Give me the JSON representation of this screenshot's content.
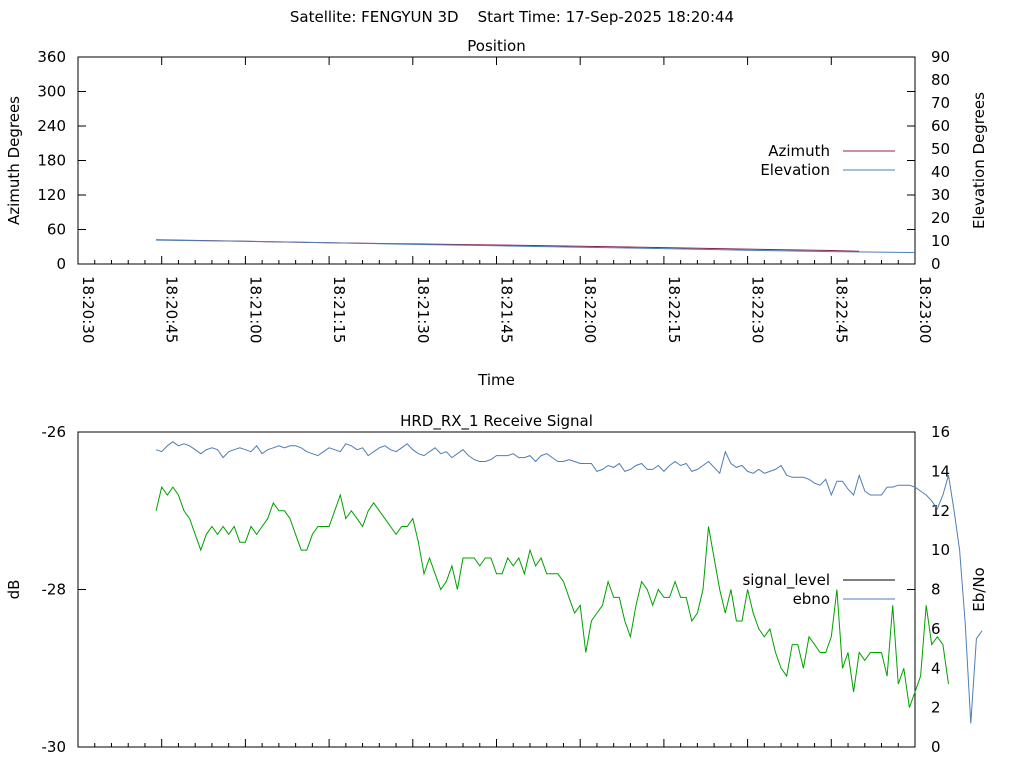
{
  "figure_title": "Satellite: FENGYUN 3D    Start Time: 17-Sep-2025 18:20:44",
  "chart_data": [
    {
      "type": "line",
      "title": "Position",
      "xlabel": "Time",
      "ylabel": "Azimuth Degrees",
      "y2label": "Elevation Degrees",
      "x_range": [
        "18:20:30",
        "18:23:00"
      ],
      "x_ticks": [
        "18:20:30",
        "18:20:45",
        "18:21:00",
        "18:21:15",
        "18:21:30",
        "18:21:45",
        "18:22:00",
        "18:22:15",
        "18:22:30",
        "18:22:45",
        "18:23:00"
      ],
      "ylim": [
        0,
        360
      ],
      "y_ticks": [
        "0",
        "60",
        "120",
        "180",
        "240",
        "300",
        "360"
      ],
      "y2lim": [
        0,
        90
      ],
      "y2_ticks": [
        "0",
        "10",
        "20",
        "30",
        "40",
        "50",
        "60",
        "70",
        "80",
        "90"
      ],
      "legend_position": "right",
      "series": [
        {
          "name": "Azimuth",
          "axis": "y",
          "color": "#8b2252",
          "x": [
            "18:20:44",
            "18:21:00",
            "18:21:15",
            "18:21:30",
            "18:21:45",
            "18:22:00",
            "18:22:15",
            "18:22:30",
            "18:22:45",
            "18:22:50"
          ],
          "values": [
            42,
            39.5,
            37,
            35,
            33,
            31,
            28.5,
            26,
            23.5,
            22
          ]
        },
        {
          "name": "Elevation",
          "axis": "y2",
          "color": "#4f7db5",
          "x": [
            "18:20:44",
            "18:21:00",
            "18:21:15",
            "18:21:30",
            "18:21:45",
            "18:22:00",
            "18:22:15",
            "18:22:30",
            "18:22:45",
            "18:23:00"
          ],
          "values": [
            10.4,
            9.9,
            9.2,
            8.5,
            7.9,
            7.3,
            6.7,
            6.0,
            5.4,
            5.0
          ]
        }
      ]
    },
    {
      "type": "line",
      "title": "HRD_RX_1 Receive Signal",
      "ylabel": "dB",
      "y2label": "Eb/No",
      "ylim": [
        -30,
        -26
      ],
      "y_ticks": [
        "-30",
        "-28",
        "-26"
      ],
      "y2lim": [
        0,
        16
      ],
      "y2_ticks": [
        "0",
        "2",
        "4",
        "6",
        "8",
        "10",
        "12",
        "14",
        "16"
      ],
      "x_range": [
        "18:20:30",
        "18:23:00"
      ],
      "legend_position": "right",
      "series": [
        {
          "name": "signal_level",
          "axis": "y",
          "color": "#00a000",
          "legend_color": "#000000",
          "x_start": "18:20:44",
          "x_step_seconds": 1,
          "values": [
            -27.0,
            -26.7,
            -26.8,
            -26.7,
            -26.8,
            -27.0,
            -27.1,
            -27.3,
            -27.5,
            -27.3,
            -27.2,
            -27.3,
            -27.2,
            -27.3,
            -27.2,
            -27.4,
            -27.4,
            -27.2,
            -27.3,
            -27.2,
            -27.1,
            -26.9,
            -27.0,
            -27.0,
            -27.1,
            -27.3,
            -27.5,
            -27.5,
            -27.3,
            -27.2,
            -27.2,
            -27.2,
            -27.0,
            -26.8,
            -27.1,
            -27.0,
            -27.1,
            -27.2,
            -27.0,
            -26.9,
            -27.0,
            -27.1,
            -27.2,
            -27.3,
            -27.2,
            -27.2,
            -27.1,
            -27.4,
            -27.8,
            -27.6,
            -27.8,
            -28.0,
            -27.9,
            -27.7,
            -28.0,
            -27.6,
            -27.6,
            -27.6,
            -27.7,
            -27.6,
            -27.6,
            -27.8,
            -27.8,
            -27.6,
            -27.7,
            -27.6,
            -27.8,
            -27.5,
            -27.7,
            -27.6,
            -27.8,
            -27.8,
            -27.8,
            -27.9,
            -28.1,
            -28.3,
            -28.2,
            -28.8,
            -28.4,
            -28.3,
            -28.2,
            -27.9,
            -28.1,
            -28.1,
            -28.4,
            -28.6,
            -28.2,
            -27.9,
            -28.0,
            -28.2,
            -28.0,
            -28.1,
            -28.1,
            -27.9,
            -28.1,
            -28.1,
            -28.4,
            -28.3,
            -28.0,
            -27.2,
            -27.6,
            -28.0,
            -28.3,
            -28.0,
            -28.4,
            -28.4,
            -28.0,
            -28.3,
            -28.5,
            -28.6,
            -28.5,
            -28.8,
            -29.0,
            -29.1,
            -28.7,
            -28.7,
            -29.0,
            -28.6,
            -28.7,
            -28.8,
            -28.8,
            -28.6,
            -28.0,
            -29.0,
            -28.8,
            -29.3,
            -28.8,
            -28.9,
            -28.8,
            -28.8,
            -28.8,
            -29.1,
            -28.2,
            -29.2,
            -29.0,
            -29.5,
            -29.3,
            -29.1,
            -28.2,
            -28.7,
            -28.6,
            -28.7,
            -29.2
          ]
        },
        {
          "name": "ebno",
          "axis": "y2",
          "color": "#4f7db5",
          "x_start": "18:20:44",
          "x_step_seconds": 1,
          "values": [
            15.1,
            15.0,
            15.3,
            15.5,
            15.3,
            15.4,
            15.3,
            15.1,
            14.9,
            15.1,
            15.2,
            15.1,
            14.7,
            15.0,
            15.1,
            15.2,
            15.1,
            15.0,
            15.3,
            14.9,
            15.1,
            15.2,
            15.3,
            15.2,
            15.3,
            15.3,
            15.2,
            15.0,
            14.9,
            14.8,
            15.0,
            15.2,
            15.1,
            15.0,
            15.4,
            15.3,
            15.1,
            15.2,
            14.8,
            15.0,
            15.2,
            15.3,
            15.1,
            15.0,
            15.2,
            15.4,
            15.1,
            14.9,
            14.8,
            15.0,
            15.2,
            14.9,
            15.0,
            14.7,
            14.9,
            15.1,
            14.8,
            14.6,
            14.5,
            14.5,
            14.6,
            14.8,
            14.8,
            14.8,
            14.9,
            14.7,
            14.7,
            14.8,
            14.5,
            14.8,
            14.9,
            14.7,
            14.5,
            14.5,
            14.6,
            14.5,
            14.4,
            14.4,
            14.4,
            14.0,
            14.1,
            14.3,
            14.2,
            14.4,
            14.0,
            14.1,
            14.3,
            14.4,
            14.1,
            14.1,
            14.3,
            14.0,
            14.3,
            14.5,
            14.3,
            14.4,
            14.0,
            14.1,
            14.3,
            14.5,
            14.2,
            13.9,
            15.0,
            14.4,
            14.2,
            14.3,
            14.0,
            13.9,
            14.1,
            13.9,
            14.0,
            14.1,
            14.3,
            13.8,
            13.7,
            13.7,
            13.7,
            13.6,
            13.4,
            13.3,
            13.6,
            12.8,
            13.5,
            13.5,
            13.1,
            12.8,
            13.8,
            13.0,
            12.8,
            12.8,
            12.8,
            13.2,
            13.2,
            13.3,
            13.3,
            13.3,
            13.2,
            13.0,
            12.8,
            12.5,
            12.1,
            12.8,
            13.8,
            12.0,
            10.0,
            6.3,
            1.2,
            5.5,
            5.9
          ]
        }
      ]
    }
  ]
}
